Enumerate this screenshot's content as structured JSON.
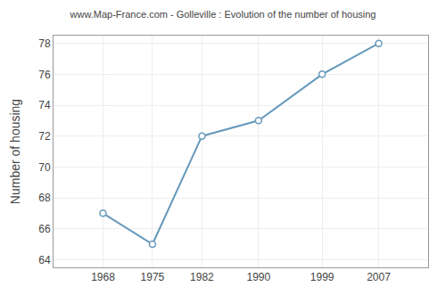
{
  "chart_data": {
    "type": "line",
    "title": "www.Map-France.com - Golleville : Evolution of the number of housing",
    "ylabel": "Number of housing",
    "x": [
      1968,
      1975,
      1982,
      1990,
      1999,
      2007
    ],
    "values": [
      67,
      65,
      72,
      73,
      76,
      78
    ],
    "xlim": [
      1961,
      2014
    ],
    "ylim": [
      63.5,
      78.5
    ],
    "xticks": [
      1968,
      1975,
      1982,
      1990,
      1999,
      2007
    ],
    "yticks": [
      64,
      66,
      68,
      70,
      72,
      74,
      76,
      78
    ],
    "color": "#6699bb",
    "marker": "o",
    "grid": true
  }
}
